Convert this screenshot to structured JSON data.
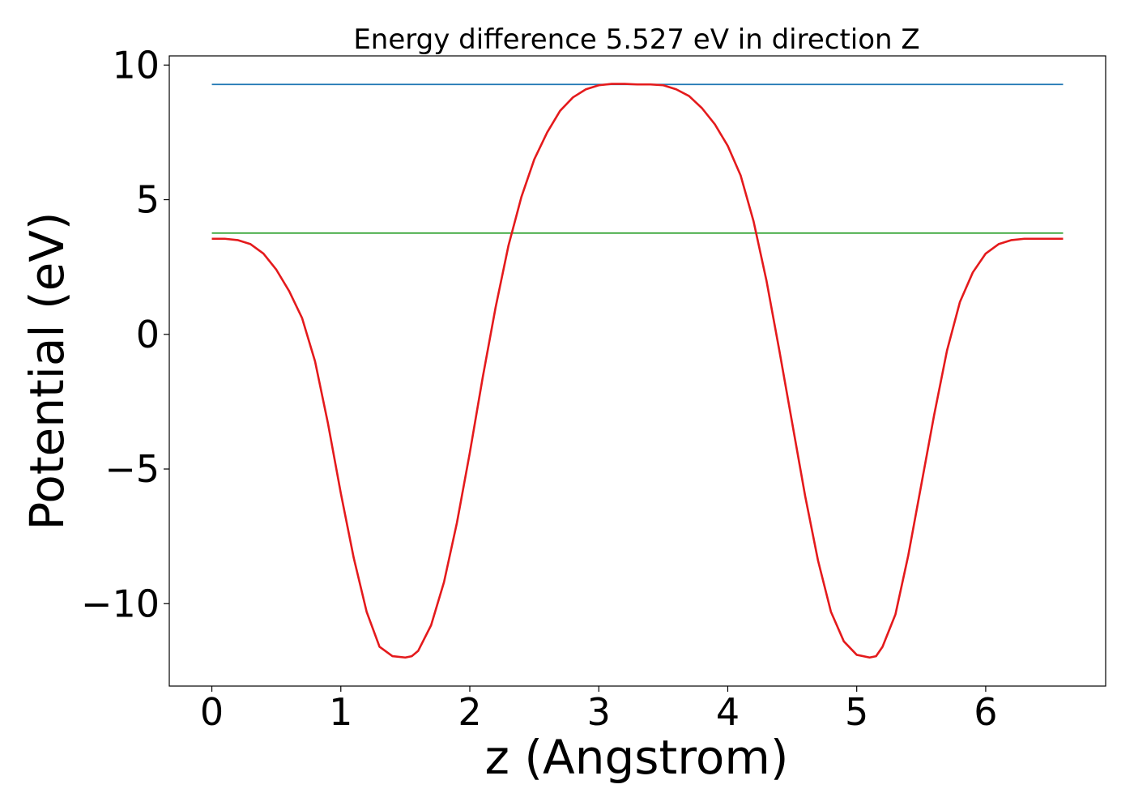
{
  "chart_data": {
    "type": "line",
    "title": "Energy difference 5.527 eV in direction Z",
    "xlabel": "z (Angstrom)",
    "ylabel": "Potential (eV)",
    "xlim": [
      -0.33,
      6.93
    ],
    "ylim": [
      -13.06,
      10.34
    ],
    "xticks": [
      0,
      1,
      2,
      3,
      4,
      5,
      6
    ],
    "yticks": [
      -10,
      -5,
      0,
      5,
      10
    ],
    "xtick_labels": [
      "0",
      "1",
      "2",
      "3",
      "4",
      "5",
      "6"
    ],
    "ytick_labels": [
      "−10",
      "−5",
      "0",
      "5",
      "10"
    ],
    "grid": false,
    "series": [
      {
        "color": "#1f77b4",
        "style": "horizontal",
        "x": [
          0,
          6.6
        ],
        "y": [
          9.28,
          9.28
        ]
      },
      {
        "color": "#2ca02c",
        "style": "horizontal",
        "x": [
          0,
          6.6
        ],
        "y": [
          3.76,
          3.76
        ]
      },
      {
        "color": "#e41a1c",
        "style": "curve",
        "x": [
          0,
          0.1,
          0.2,
          0.3,
          0.4,
          0.5,
          0.6,
          0.7,
          0.8,
          0.9,
          1.0,
          1.1,
          1.2,
          1.3,
          1.4,
          1.5,
          1.55,
          1.6,
          1.7,
          1.8,
          1.9,
          2.0,
          2.1,
          2.2,
          2.3,
          2.4,
          2.5,
          2.6,
          2.7,
          2.8,
          2.9,
          3.0,
          3.1,
          3.2,
          3.3,
          3.4,
          3.5,
          3.6,
          3.7,
          3.8,
          3.9,
          4.0,
          4.1,
          4.2,
          4.3,
          4.4,
          4.5,
          4.6,
          4.7,
          4.8,
          4.9,
          5.0,
          5.1,
          5.15,
          5.2,
          5.3,
          5.4,
          5.5,
          5.6,
          5.7,
          5.8,
          5.9,
          6.0,
          6.1,
          6.2,
          6.3,
          6.4,
          6.5,
          6.6
        ],
        "y": [
          3.55,
          3.55,
          3.5,
          3.35,
          3.0,
          2.4,
          1.6,
          0.6,
          -1.0,
          -3.3,
          -5.9,
          -8.3,
          -10.3,
          -11.6,
          -11.95,
          -12.0,
          -11.95,
          -11.75,
          -10.8,
          -9.2,
          -7.0,
          -4.4,
          -1.6,
          1.0,
          3.3,
          5.1,
          6.5,
          7.5,
          8.3,
          8.8,
          9.1,
          9.25,
          9.3,
          9.3,
          9.28,
          9.28,
          9.25,
          9.1,
          8.85,
          8.4,
          7.8,
          7.0,
          5.9,
          4.2,
          2.0,
          -0.6,
          -3.3,
          -6.0,
          -8.4,
          -10.3,
          -11.4,
          -11.9,
          -12.0,
          -11.95,
          -11.6,
          -10.4,
          -8.2,
          -5.6,
          -3.0,
          -0.6,
          1.2,
          2.3,
          3.0,
          3.35,
          3.5,
          3.55,
          3.55,
          3.55,
          3.55
        ]
      }
    ]
  }
}
